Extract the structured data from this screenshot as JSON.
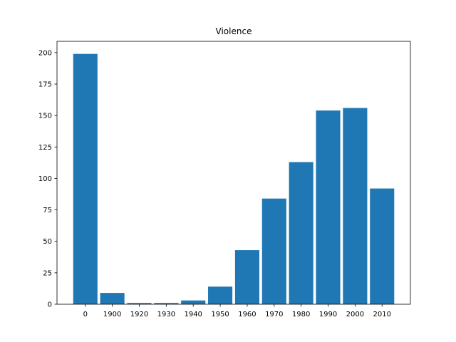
{
  "chart_data": {
    "type": "bar",
    "title": "Violence",
    "xlabel": "",
    "ylabel": "",
    "categories": [
      "0",
      "1900",
      "1920",
      "1930",
      "1940",
      "1950",
      "1960",
      "1970",
      "1980",
      "1990",
      "2000",
      "2010"
    ],
    "values": [
      199,
      9,
      1,
      1,
      3,
      14,
      43,
      84,
      113,
      154,
      156,
      92
    ],
    "ylim": [
      0,
      209
    ],
    "yticks": [
      0,
      25,
      50,
      75,
      100,
      125,
      150,
      175,
      200
    ],
    "grid": false,
    "bar_color": "#1f77b4"
  }
}
